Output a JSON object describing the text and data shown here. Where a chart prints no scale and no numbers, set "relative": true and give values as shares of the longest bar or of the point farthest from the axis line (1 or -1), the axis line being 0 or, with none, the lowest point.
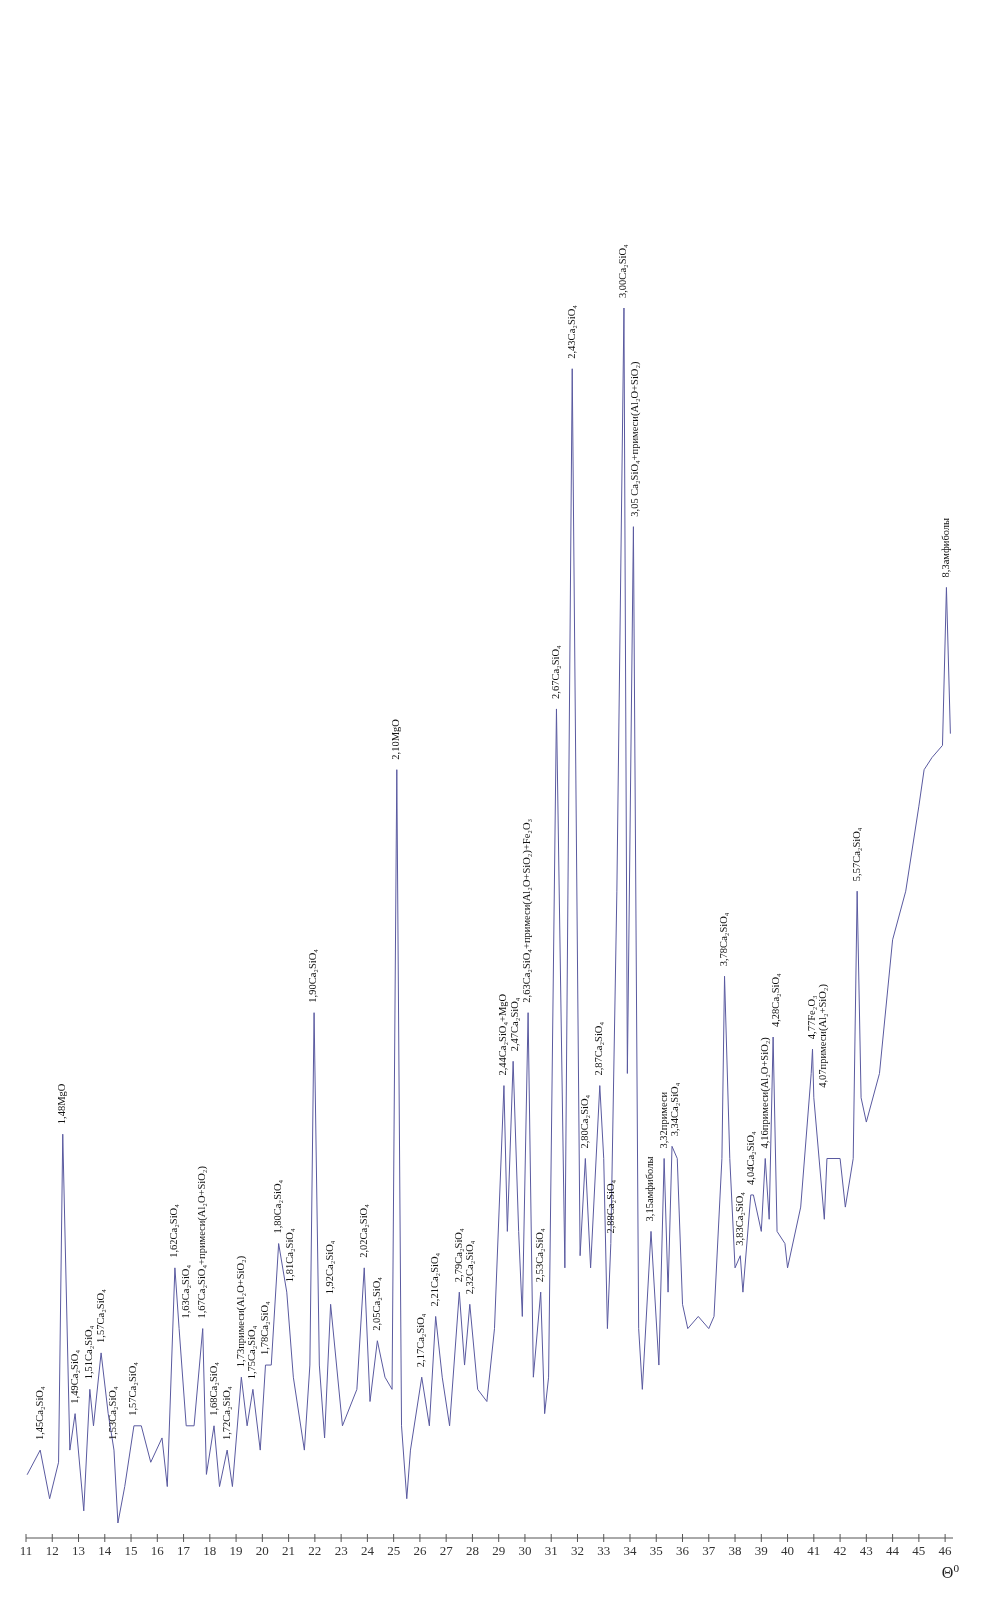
{
  "chart_data": {
    "type": "line",
    "relative": true,
    "color": "#5a5aa0",
    "xlabel": "Θ$^{0}$",
    "xlim": [
      11,
      46.3
    ],
    "xticks": [
      11,
      12,
      13,
      14,
      15,
      16,
      17,
      18,
      19,
      20,
      21,
      22,
      23,
      24,
      25,
      26,
      27,
      28,
      29,
      30,
      31,
      32,
      33,
      34,
      35,
      36,
      37,
      38,
      39,
      40,
      41,
      42,
      43,
      44,
      45,
      46
    ],
    "x": [
      11.05,
      11.54,
      11.9,
      12.24,
      12.4,
      12.67,
      12.87,
      13.2,
      13.43,
      13.57,
      13.86,
      14.13,
      14.35,
      14.5,
      14.76,
      15.11,
      15.39,
      15.75,
      16.18,
      16.38,
      16.67,
      16.83,
      17.1,
      17.4,
      17.73,
      17.87,
      18.16,
      18.37,
      18.66,
      18.86,
      19.2,
      19.42,
      19.64,
      19.92,
      20.12,
      20.34,
      20.62,
      20.93,
      21.18,
      21.6,
      21.81,
      21.97,
      22.17,
      22.37,
      22.6,
      23.05,
      23.6,
      23.88,
      24.1,
      24.38,
      24.67,
      24.94,
      25.12,
      25.3,
      25.5,
      25.64,
      26.07,
      26.36,
      26.6,
      26.85,
      27.13,
      27.5,
      27.7,
      27.9,
      28.2,
      28.55,
      28.84,
      29.2,
      29.33,
      29.55,
      29.76,
      29.9,
      30.12,
      30.32,
      30.6,
      30.75,
      30.9,
      31.2,
      31.52,
      31.8,
      32.1,
      32.3,
      32.5,
      32.85,
      33.0,
      33.14,
      33.27,
      33.5,
      33.77,
      33.9,
      34.13,
      34.33,
      34.47,
      34.8,
      35.1,
      35.3,
      35.45,
      35.6,
      35.8,
      36.0,
      36.2,
      36.6,
      37.0,
      37.2,
      37.5,
      37.6,
      37.8,
      38.0,
      38.2,
      38.3,
      38.6,
      38.7,
      39.0,
      39.15,
      39.3,
      39.45,
      39.6,
      39.9,
      40.0,
      40.5,
      40.9,
      40.95,
      41.0,
      41.4,
      41.5,
      42.0,
      42.2,
      42.5,
      42.65,
      42.8,
      43.0,
      43.5,
      44.0,
      44.5,
      45.0,
      45.2,
      45.5,
      45.9,
      46.05,
      46.2
    ],
    "values": [
      0.04,
      0.06,
      0.02,
      0.05,
      0.32,
      0.06,
      0.09,
      0.01,
      0.11,
      0.08,
      0.14,
      0.09,
      0.06,
      0.0,
      0.03,
      0.08,
      0.08,
      0.05,
      0.07,
      0.03,
      0.21,
      0.16,
      0.08,
      0.08,
      0.16,
      0.04,
      0.08,
      0.03,
      0.06,
      0.03,
      0.12,
      0.08,
      0.11,
      0.06,
      0.13,
      0.13,
      0.23,
      0.19,
      0.12,
      0.06,
      0.13,
      0.42,
      0.13,
      0.07,
      0.18,
      0.08,
      0.11,
      0.21,
      0.1,
      0.15,
      0.12,
      0.11,
      0.62,
      0.08,
      0.02,
      0.06,
      0.12,
      0.08,
      0.17,
      0.12,
      0.08,
      0.19,
      0.13,
      0.18,
      0.11,
      0.1,
      0.16,
      0.36,
      0.24,
      0.38,
      0.24,
      0.17,
      0.42,
      0.12,
      0.19,
      0.09,
      0.12,
      0.67,
      0.21,
      0.95,
      0.22,
      0.3,
      0.21,
      0.36,
      0.3,
      0.16,
      0.23,
      0.52,
      1.0,
      0.37,
      0.82,
      0.16,
      0.11,
      0.24,
      0.13,
      0.3,
      0.19,
      0.31,
      0.3,
      0.18,
      0.16,
      0.17,
      0.16,
      0.17,
      0.3,
      0.45,
      0.3,
      0.21,
      0.22,
      0.19,
      0.27,
      0.27,
      0.24,
      0.3,
      0.25,
      0.4,
      0.24,
      0.23,
      0.21,
      0.26,
      0.37,
      0.39,
      0.35,
      0.25,
      0.3,
      0.3,
      0.26,
      0.3,
      0.52,
      0.35,
      0.33,
      0.37,
      0.48,
      0.52,
      0.59,
      0.62,
      0.63,
      0.64,
      0.77,
      0.65
    ],
    "annotations": [
      {
        "text": "1,45Ca₂SiO₄",
        "x": 11.54,
        "y": 0.06
      },
      {
        "text": "1,48MgO",
        "x": 12.4,
        "y": 0.32
      },
      {
        "text": "1,49Ca₂SiO₄",
        "x": 12.87,
        "y": 0.09
      },
      {
        "text": "1,51Ca₂SiO₄",
        "x": 13.43,
        "y": 0.11
      },
      {
        "text": "1,57Ca₂SiO₄",
        "x": 13.86,
        "y": 0.14
      },
      {
        "text": "1,53Ca₂SiO₄",
        "x": 14.35,
        "y": 0.06
      },
      {
        "text": "1,57Ca₂SiO₄",
        "x": 15.11,
        "y": 0.08
      },
      {
        "text": "1,62Ca₂SiO₄",
        "x": 16.67,
        "y": 0.21
      },
      {
        "text": "1,63Ca₂SiO₄",
        "x": 16.83,
        "y": 0.16
      },
      {
        "text": "1,67Ca₂SiO₄+примеси(Al₂O+SiO₂)",
        "x": 17.73,
        "y": 0.16
      },
      {
        "text": "1,68Ca₂SiO₄",
        "x": 18.16,
        "y": 0.08
      },
      {
        "text": "1,72Ca₂SiO₄",
        "x": 18.66,
        "y": 0.06
      },
      {
        "text": "1,73примеси(Al₂O+SiO₂)",
        "x": 19.2,
        "y": 0.12
      },
      {
        "text": "1,75Ca₂SiO₄",
        "x": 19.64,
        "y": 0.11
      },
      {
        "text": "1,78Ca₂SiO₄",
        "x": 20.12,
        "y": 0.13
      },
      {
        "text": "1,80Ca₂SiO₄",
        "x": 20.62,
        "y": 0.23
      },
      {
        "text": "1,81Ca₂SiO₄",
        "x": 20.93,
        "y": 0.19
      },
      {
        "text": "1,90Ca₂SiO₄",
        "x": 21.97,
        "y": 0.42
      },
      {
        "text": "1,92Ca₂SiO₄",
        "x": 22.6,
        "y": 0.18
      },
      {
        "text": "2,02Ca₂SiO₄",
        "x": 23.88,
        "y": 0.21
      },
      {
        "text": "2,05Ca₂SiO₄",
        "x": 24.38,
        "y": 0.15
      },
      {
        "text": "2,10MgO",
        "x": 25.12,
        "y": 0.62
      },
      {
        "text": "2,17Ca₂SiO₄",
        "x": 26.07,
        "y": 0.12
      },
      {
        "text": "2,21Ca₂SiO₄",
        "x": 26.6,
        "y": 0.17
      },
      {
        "text": "2,79Ca₂SiO₄",
        "x": 27.5,
        "y": 0.19
      },
      {
        "text": "2,32Ca₂SiO₄",
        "x": 27.9,
        "y": 0.18
      },
      {
        "text": "2,44Ca₂SiO₄+MgO",
        "x": 29.2,
        "y": 0.36
      },
      {
        "text": "2,47Ca₂SiO₄",
        "x": 29.55,
        "y": 0.38
      },
      {
        "text": "2,63Ca₂SiO₄+примеси(Al₂O+SiO₂)+Fe₂O₃",
        "x": 30.12,
        "y": 0.42
      },
      {
        "text": "2,53Ca₂SiO₄",
        "x": 30.6,
        "y": 0.19
      },
      {
        "text": "2,67Ca₂SiO₄",
        "x": 31.2,
        "y": 0.67
      },
      {
        "text": "2,43Ca₂SiO₄",
        "x": 31.8,
        "y": 0.95
      },
      {
        "text": "2,80Ca₂SiO₄",
        "x": 32.3,
        "y": 0.3
      },
      {
        "text": "2,87Ca₂SiO₄",
        "x": 32.85,
        "y": 0.36
      },
      {
        "text": "2,88Ca₂SiO₄",
        "x": 33.27,
        "y": 0.23
      },
      {
        "text": "3,00Ca₂SiO₄",
        "x": 33.77,
        "y": 1.0
      },
      {
        "text": "3,05 Ca₂SiO₄+примеси(Al₂O+SiO₂)",
        "x": 34.13,
        "y": 0.82
      },
      {
        "text": "3,15амфиболы",
        "x": 34.8,
        "y": 0.24
      },
      {
        "text": "3,32примеси",
        "x": 35.3,
        "y": 0.3
      },
      {
        "text": "3,34Ca₂SiO₄",
        "x": 35.6,
        "y": 0.31
      },
      {
        "text": "3,78Ca₂SiO₄",
        "x": 37.6,
        "y": 0.45
      },
      {
        "text": "3,83Ca₂SiO₄",
        "x": 38.2,
        "y": 0.22
      },
      {
        "text": "4,04Ca₂SiO₄",
        "x": 38.6,
        "y": 0.27
      },
      {
        "text": "4,16примеси(Al₂O+SiO₂)",
        "x": 39.15,
        "y": 0.3
      },
      {
        "text": "4,28Ca₂SiO₄",
        "x": 39.45,
        "y": 0.4
      },
      {
        "text": "4,77Fe₂O₃",
        "x": 40.95,
        "y": 0.39
      },
      {
        "text": "4,07примеси(Al₂+SiO₂)",
        "x": 41.0,
        "y": 0.35
      },
      {
        "text": "5,57Ca₂SiO₄",
        "x": 42.65,
        "y": 0.52
      },
      {
        "text": "8,3амфиболы",
        "x": 46.05,
        "y": 0.77
      }
    ]
  }
}
